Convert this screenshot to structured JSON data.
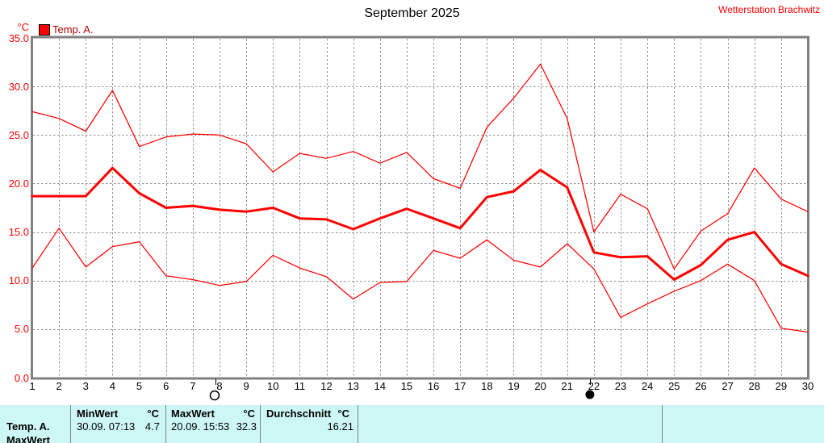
{
  "header": {
    "title": "September 2025",
    "station": "Wetterstation Brachwitz"
  },
  "legend": {
    "unit": "°C",
    "series_label": "Temp. A."
  },
  "colors": {
    "series": "#ff0000",
    "legend_text": "#b00000",
    "station_text": "#ff0000",
    "axis_label_text": "#ff0000",
    "tick_text": "#000000",
    "grid": "#909090",
    "frame": "#808080",
    "table_bg": "#cdf7f5",
    "table_divider": "#808080"
  },
  "chart_data": {
    "type": "line",
    "title": "September 2025",
    "xlabel": "",
    "ylabel": "°C",
    "ylim": [
      0,
      35
    ],
    "grid": true,
    "legend_position": "top-left",
    "ytick_labels": [
      "0.0",
      "5.0",
      "10.0",
      "15.0",
      "20.0",
      "25.0",
      "30.0",
      "35.0"
    ],
    "x": [
      1,
      2,
      3,
      4,
      5,
      6,
      7,
      8,
      9,
      10,
      11,
      12,
      13,
      14,
      15,
      16,
      17,
      18,
      19,
      20,
      21,
      22,
      23,
      24,
      25,
      26,
      27,
      28,
      29,
      30
    ],
    "series": [
      {
        "name": "daily-max",
        "style": "thin",
        "values": [
          27.4,
          26.7,
          25.4,
          29.6,
          23.8,
          24.8,
          25.1,
          25.0,
          24.1,
          21.2,
          23.1,
          22.6,
          23.3,
          22.1,
          23.2,
          20.5,
          19.5,
          25.8,
          28.8,
          32.3,
          26.7,
          15.0,
          18.9,
          17.4,
          11.2,
          15.1,
          16.9,
          21.6,
          18.4,
          17.1
        ]
      },
      {
        "name": "daily-mean",
        "style": "thick",
        "values": [
          18.7,
          18.7,
          18.7,
          21.6,
          19.0,
          17.5,
          17.7,
          17.3,
          17.1,
          17.5,
          16.4,
          16.3,
          15.3,
          16.4,
          17.4,
          16.4,
          15.4,
          18.6,
          19.2,
          21.4,
          19.6,
          12.9,
          12.4,
          12.5,
          10.1,
          11.6,
          14.2,
          15.0,
          11.7,
          10.5
        ]
      },
      {
        "name": "daily-min",
        "style": "thin",
        "values": [
          11.3,
          15.4,
          11.4,
          13.5,
          14.0,
          10.5,
          10.1,
          9.5,
          9.9,
          12.6,
          11.3,
          10.4,
          8.1,
          9.8,
          9.9,
          13.1,
          12.3,
          14.2,
          12.1,
          11.4,
          13.8,
          11.2,
          6.2,
          7.6,
          8.9,
          10.0,
          11.7,
          10.0,
          5.1,
          4.7
        ]
      }
    ],
    "moon_phases": [
      {
        "day": 8,
        "phase": "full-moon"
      },
      {
        "day": 22,
        "phase": "new-moon"
      }
    ]
  },
  "table": {
    "rows": [
      {
        "label": "Temp. A."
      },
      {
        "label": "MaxWert"
      }
    ],
    "min": {
      "header": "MinWert",
      "unit": "°C",
      "datetime": "30.09.  07:13",
      "value": "4.7"
    },
    "max": {
      "header": "MaxWert",
      "unit": "°C",
      "datetime": "20.09.  15:53",
      "value": "32.3"
    },
    "avg": {
      "header": "Durchschnitt",
      "unit": "°C",
      "value": "16.21"
    }
  }
}
